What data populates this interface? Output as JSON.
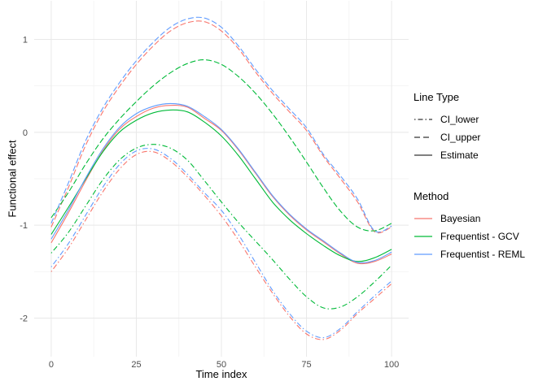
{
  "chart": {
    "x_axis": {
      "title": "Time index",
      "tick_labels": [
        "0",
        "25",
        "50",
        "75",
        "100"
      ],
      "tick_values": [
        0,
        25,
        50,
        75,
        100
      ],
      "minor_values": [
        12.5,
        37.5,
        62.5,
        87.5
      ],
      "range": [
        -5,
        105
      ]
    },
    "y_axis": {
      "title": "Functional effect",
      "tick_labels": [
        "1",
        "0",
        "-1",
        "-2"
      ],
      "tick_values": [
        1,
        0,
        -1,
        -2
      ],
      "minor_values": [
        0.5,
        -0.5,
        -1.5
      ],
      "range": [
        -2.415,
        1.415
      ]
    },
    "colors": {
      "background": "#FFFFFF",
      "grid_major": "#E8E8E8",
      "grid_minor": "#F3F3F3",
      "tick_text": "#4D4D4D",
      "title_text": "#000000",
      "legend_key": "#000000"
    }
  },
  "legend": {
    "line_type_group": {
      "title": "Line Type",
      "items": [
        {
          "label": "CI_lower",
          "pattern": "dotdash"
        },
        {
          "label": "CI_upper",
          "pattern": "dashed"
        },
        {
          "label": "Estimate",
          "pattern": "solid"
        }
      ]
    },
    "method_group": {
      "title": "Method",
      "items": [
        {
          "label": "Bayesian",
          "color": "#F8766D"
        },
        {
          "label": "Frequentist - GCV",
          "color": "#00BA38"
        },
        {
          "label": "Frequentist - REML",
          "color": "#619CFF"
        }
      ]
    }
  },
  "chart_data": {
    "type": "line",
    "title": "",
    "xlabel": "Time index",
    "ylabel": "Functional effect",
    "xlim": [
      0,
      100
    ],
    "ylim": [
      -2.24,
      1.24
    ],
    "grid": true,
    "legend_position": "right",
    "x": [
      0,
      5,
      10,
      15,
      20,
      25,
      30,
      35,
      40,
      45,
      50,
      55,
      60,
      65,
      70,
      75,
      80,
      85,
      90,
      95,
      100
    ],
    "series": [
      {
        "method": "Bayesian",
        "line_type": "CI_lower",
        "color": "#F8766D",
        "dash": "dotdash",
        "values": [
          -1.5,
          -1.25,
          -0.95,
          -0.65,
          -0.4,
          -0.24,
          -0.21,
          -0.31,
          -0.48,
          -0.68,
          -0.9,
          -1.16,
          -1.45,
          -1.73,
          -1.98,
          -2.17,
          -2.23,
          -2.13,
          -1.95,
          -1.79,
          -1.63
        ]
      },
      {
        "method": "Bayesian",
        "line_type": "CI_upper",
        "color": "#F8766D",
        "dash": "dashed",
        "values": [
          -1.02,
          -0.6,
          -0.15,
          0.21,
          0.49,
          0.73,
          0.93,
          1.09,
          1.18,
          1.19,
          1.09,
          0.9,
          0.65,
          0.42,
          0.22,
          0.02,
          -0.26,
          -0.5,
          -0.75,
          -1.07,
          -1.02
        ]
      },
      {
        "method": "Bayesian",
        "line_type": "Estimate",
        "color": "#F8766D",
        "dash": "solid",
        "values": [
          -1.19,
          -0.87,
          -0.53,
          -0.21,
          0.03,
          0.17,
          0.26,
          0.29,
          0.27,
          0.15,
          0.02,
          -0.19,
          -0.44,
          -0.69,
          -0.89,
          -1.05,
          -1.18,
          -1.31,
          -1.41,
          -1.39,
          -1.31
        ]
      },
      {
        "method": "Frequentist - GCV",
        "line_type": "CI_lower",
        "color": "#00BA38",
        "dash": "dotdash",
        "values": [
          -1.3,
          -1.08,
          -0.8,
          -0.52,
          -0.3,
          -0.17,
          -0.13,
          -0.17,
          -0.3,
          -0.52,
          -0.75,
          -0.97,
          -1.17,
          -1.37,
          -1.58,
          -1.77,
          -1.89,
          -1.88,
          -1.77,
          -1.61,
          -1.43
        ]
      },
      {
        "method": "Frequentist - GCV",
        "line_type": "CI_upper",
        "color": "#00BA38",
        "dash": "dashed",
        "values": [
          -0.92,
          -0.65,
          -0.35,
          -0.08,
          0.14,
          0.33,
          0.5,
          0.64,
          0.74,
          0.78,
          0.73,
          0.6,
          0.42,
          0.2,
          -0.05,
          -0.32,
          -0.6,
          -0.85,
          -1.02,
          -1.06,
          -0.98
        ]
      },
      {
        "method": "Frequentist - GCV",
        "line_type": "Estimate",
        "color": "#00BA38",
        "dash": "solid",
        "values": [
          -1.1,
          -0.81,
          -0.51,
          -0.22,
          0.0,
          0.13,
          0.21,
          0.24,
          0.22,
          0.11,
          -0.04,
          -0.25,
          -0.5,
          -0.75,
          -0.94,
          -1.09,
          -1.22,
          -1.33,
          -1.39,
          -1.35,
          -1.26
        ]
      },
      {
        "method": "Frequentist - REML",
        "line_type": "CI_lower",
        "color": "#619CFF",
        "dash": "dotdash",
        "values": [
          -1.45,
          -1.2,
          -0.9,
          -0.6,
          -0.35,
          -0.2,
          -0.18,
          -0.28,
          -0.45,
          -0.65,
          -0.84,
          -1.1,
          -1.4,
          -1.7,
          -1.95,
          -2.14,
          -2.21,
          -2.11,
          -1.93,
          -1.76,
          -1.6
        ]
      },
      {
        "method": "Frequentist - REML",
        "line_type": "CI_upper",
        "color": "#619CFF",
        "dash": "dashed",
        "values": [
          -0.98,
          -0.55,
          -0.1,
          0.25,
          0.53,
          0.77,
          0.97,
          1.13,
          1.22,
          1.23,
          1.13,
          0.93,
          0.68,
          0.45,
          0.25,
          0.05,
          -0.24,
          -0.47,
          -0.72,
          -1.06,
          -1.01
        ]
      },
      {
        "method": "Frequentist - REML",
        "line_type": "Estimate",
        "color": "#619CFF",
        "dash": "solid",
        "values": [
          -1.15,
          -0.84,
          -0.5,
          -0.19,
          0.05,
          0.2,
          0.28,
          0.31,
          0.28,
          0.17,
          0.03,
          -0.18,
          -0.43,
          -0.68,
          -0.88,
          -1.04,
          -1.17,
          -1.3,
          -1.4,
          -1.38,
          -1.29
        ]
      }
    ]
  }
}
